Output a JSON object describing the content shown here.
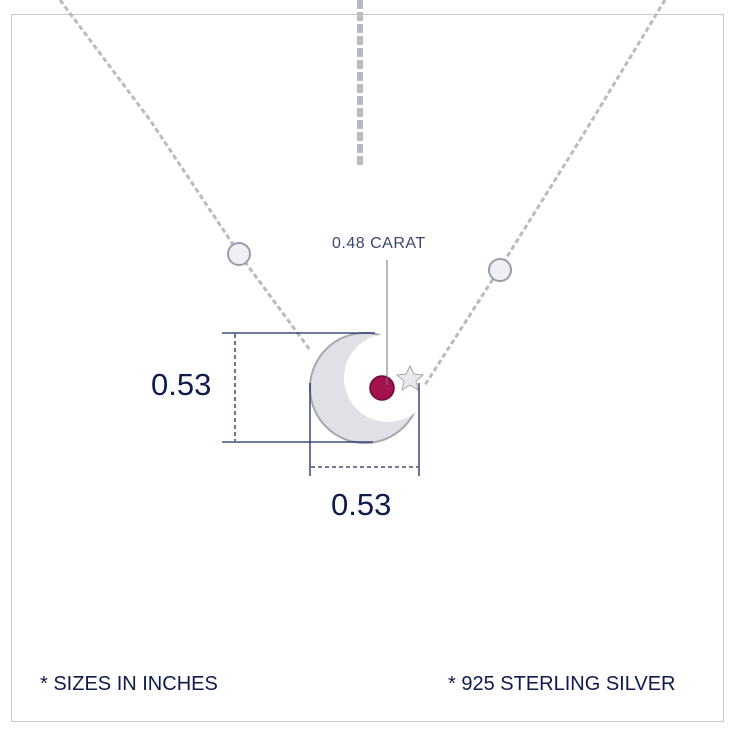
{
  "product": {
    "stone_weight": "0.48 CARAT",
    "height_label": "0.53",
    "width_label": "0.53",
    "note_sizes": "* SIZES IN INCHES",
    "note_material": "* 925 STERLING SILVER"
  },
  "colors": {
    "text": "#0f1a4d",
    "dimension_lines": "#1a2a5e",
    "silver": "#c9cbd0",
    "ruby": "#a3124f",
    "frame": "#c4c6d0"
  }
}
